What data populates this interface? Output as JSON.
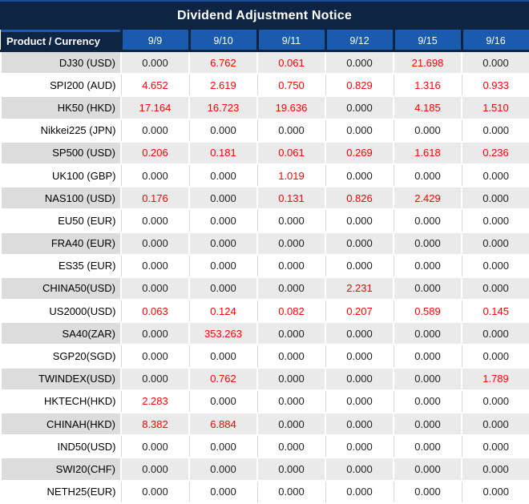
{
  "title": "Dividend Adjustment Notice",
  "colors": {
    "navy": "#0e2443",
    "header_blue": "#1a5bad",
    "row_gray_label": "#dcdcdc",
    "row_gray_cell": "#eaeaea",
    "grid_gray": "#d9d9d9",
    "zero_text": "#1f1f1f",
    "nonzero_text": "#ff0000",
    "header_text": "#ffffff"
  },
  "table": {
    "product_header": "Product / Currency",
    "date_columns": [
      "9/9",
      "9/10",
      "9/11",
      "9/12",
      "9/15",
      "9/16"
    ],
    "rows": [
      {
        "product": "DJ30 (USD)",
        "values": [
          "0.000",
          "6.762",
          "0.061",
          "0.000",
          "21.698",
          "0.000"
        ]
      },
      {
        "product": "SPI200 (AUD)",
        "values": [
          "4.652",
          "2.619",
          "0.750",
          "0.829",
          "1.316",
          "0.933"
        ]
      },
      {
        "product": "HK50 (HKD)",
        "values": [
          "17.164",
          "16.723",
          "19.636",
          "0.000",
          "4.185",
          "1.510"
        ]
      },
      {
        "product": "Nikkei225 (JPN)",
        "values": [
          "0.000",
          "0.000",
          "0.000",
          "0.000",
          "0.000",
          "0.000"
        ]
      },
      {
        "product": "SP500 (USD)",
        "values": [
          "0.206",
          "0.181",
          "0.061",
          "0.269",
          "1.618",
          "0.236"
        ]
      },
      {
        "product": "UK100 (GBP)",
        "values": [
          "0.000",
          "0.000",
          "1.019",
          "0.000",
          "0.000",
          "0.000"
        ]
      },
      {
        "product": "NAS100 (USD)",
        "values": [
          "0.176",
          "0.000",
          "0.131",
          "0.826",
          "2.429",
          "0.000"
        ]
      },
      {
        "product": "EU50 (EUR)",
        "values": [
          "0.000",
          "0.000",
          "0.000",
          "0.000",
          "0.000",
          "0.000"
        ]
      },
      {
        "product": "FRA40 (EUR)",
        "values": [
          "0.000",
          "0.000",
          "0.000",
          "0.000",
          "0.000",
          "0.000"
        ]
      },
      {
        "product": "ES35 (EUR)",
        "values": [
          "0.000",
          "0.000",
          "0.000",
          "0.000",
          "0.000",
          "0.000"
        ]
      },
      {
        "product": "CHINA50(USD)",
        "values": [
          "0.000",
          "0.000",
          "0.000",
          "2.231",
          "0.000",
          "0.000"
        ]
      },
      {
        "product": "US2000(USD)",
        "values": [
          "0.063",
          "0.124",
          "0.082",
          "0.207",
          "0.589",
          "0.145"
        ]
      },
      {
        "product": "SA40(ZAR)",
        "values": [
          "0.000",
          "353.263",
          "0.000",
          "0.000",
          "0.000",
          "0.000"
        ]
      },
      {
        "product": "SGP20(SGD)",
        "values": [
          "0.000",
          "0.000",
          "0.000",
          "0.000",
          "0.000",
          "0.000"
        ]
      },
      {
        "product": "TWINDEX(USD)",
        "values": [
          "0.000",
          "0.762",
          "0.000",
          "0.000",
          "0.000",
          "1.789"
        ]
      },
      {
        "product": "HKTECH(HKD)",
        "values": [
          "2.283",
          "0.000",
          "0.000",
          "0.000",
          "0.000",
          "0.000"
        ]
      },
      {
        "product": "CHINAH(HKD)",
        "values": [
          "8.382",
          "6.884",
          "0.000",
          "0.000",
          "0.000",
          "0.000"
        ]
      },
      {
        "product": "IND50(USD)",
        "values": [
          "0.000",
          "0.000",
          "0.000",
          "0.000",
          "0.000",
          "0.000"
        ]
      },
      {
        "product": "SWI20(CHF)",
        "values": [
          "0.000",
          "0.000",
          "0.000",
          "0.000",
          "0.000",
          "0.000"
        ]
      },
      {
        "product": "NETH25(EUR)",
        "values": [
          "0.000",
          "0.000",
          "0.000",
          "0.000",
          "0.000",
          "0.000"
        ]
      }
    ]
  }
}
